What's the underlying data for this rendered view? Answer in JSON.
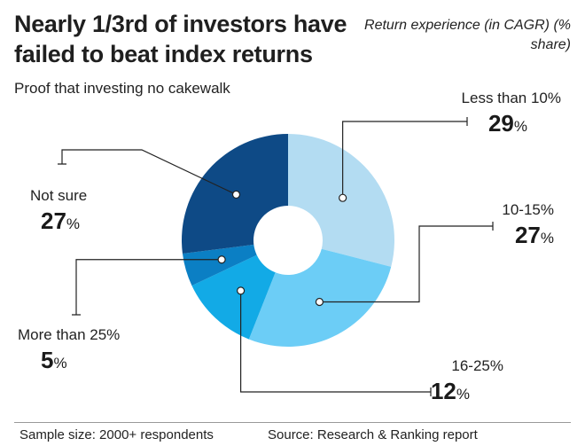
{
  "header": {
    "title": "Nearly 1/3rd of investors have failed to beat index returns",
    "subtitle": "Proof that investing no cakewalk",
    "legend_title": "Return experience (in CAGR) (% share)"
  },
  "footer": {
    "sample": "Sample size: 2000+ respondents",
    "source": "Source: Research & Ranking report"
  },
  "chart_data": {
    "type": "pie",
    "subtype": "donut",
    "title": "Nearly 1/3rd of investors have failed to beat index returns",
    "subtitle": "Proof that investing no cakewalk",
    "legend_title": "Return experience (in CAGR) (% share)",
    "categories": [
      "Less than 10%",
      "10-15%",
      "16-25%",
      "More than 25%",
      "Not sure"
    ],
    "values": [
      29,
      27,
      12,
      5,
      27
    ],
    "unit": "%",
    "colors": [
      "#b3dcf2",
      "#6ccdf6",
      "#12aae6",
      "#0b7fc4",
      "#0e4a86"
    ]
  }
}
